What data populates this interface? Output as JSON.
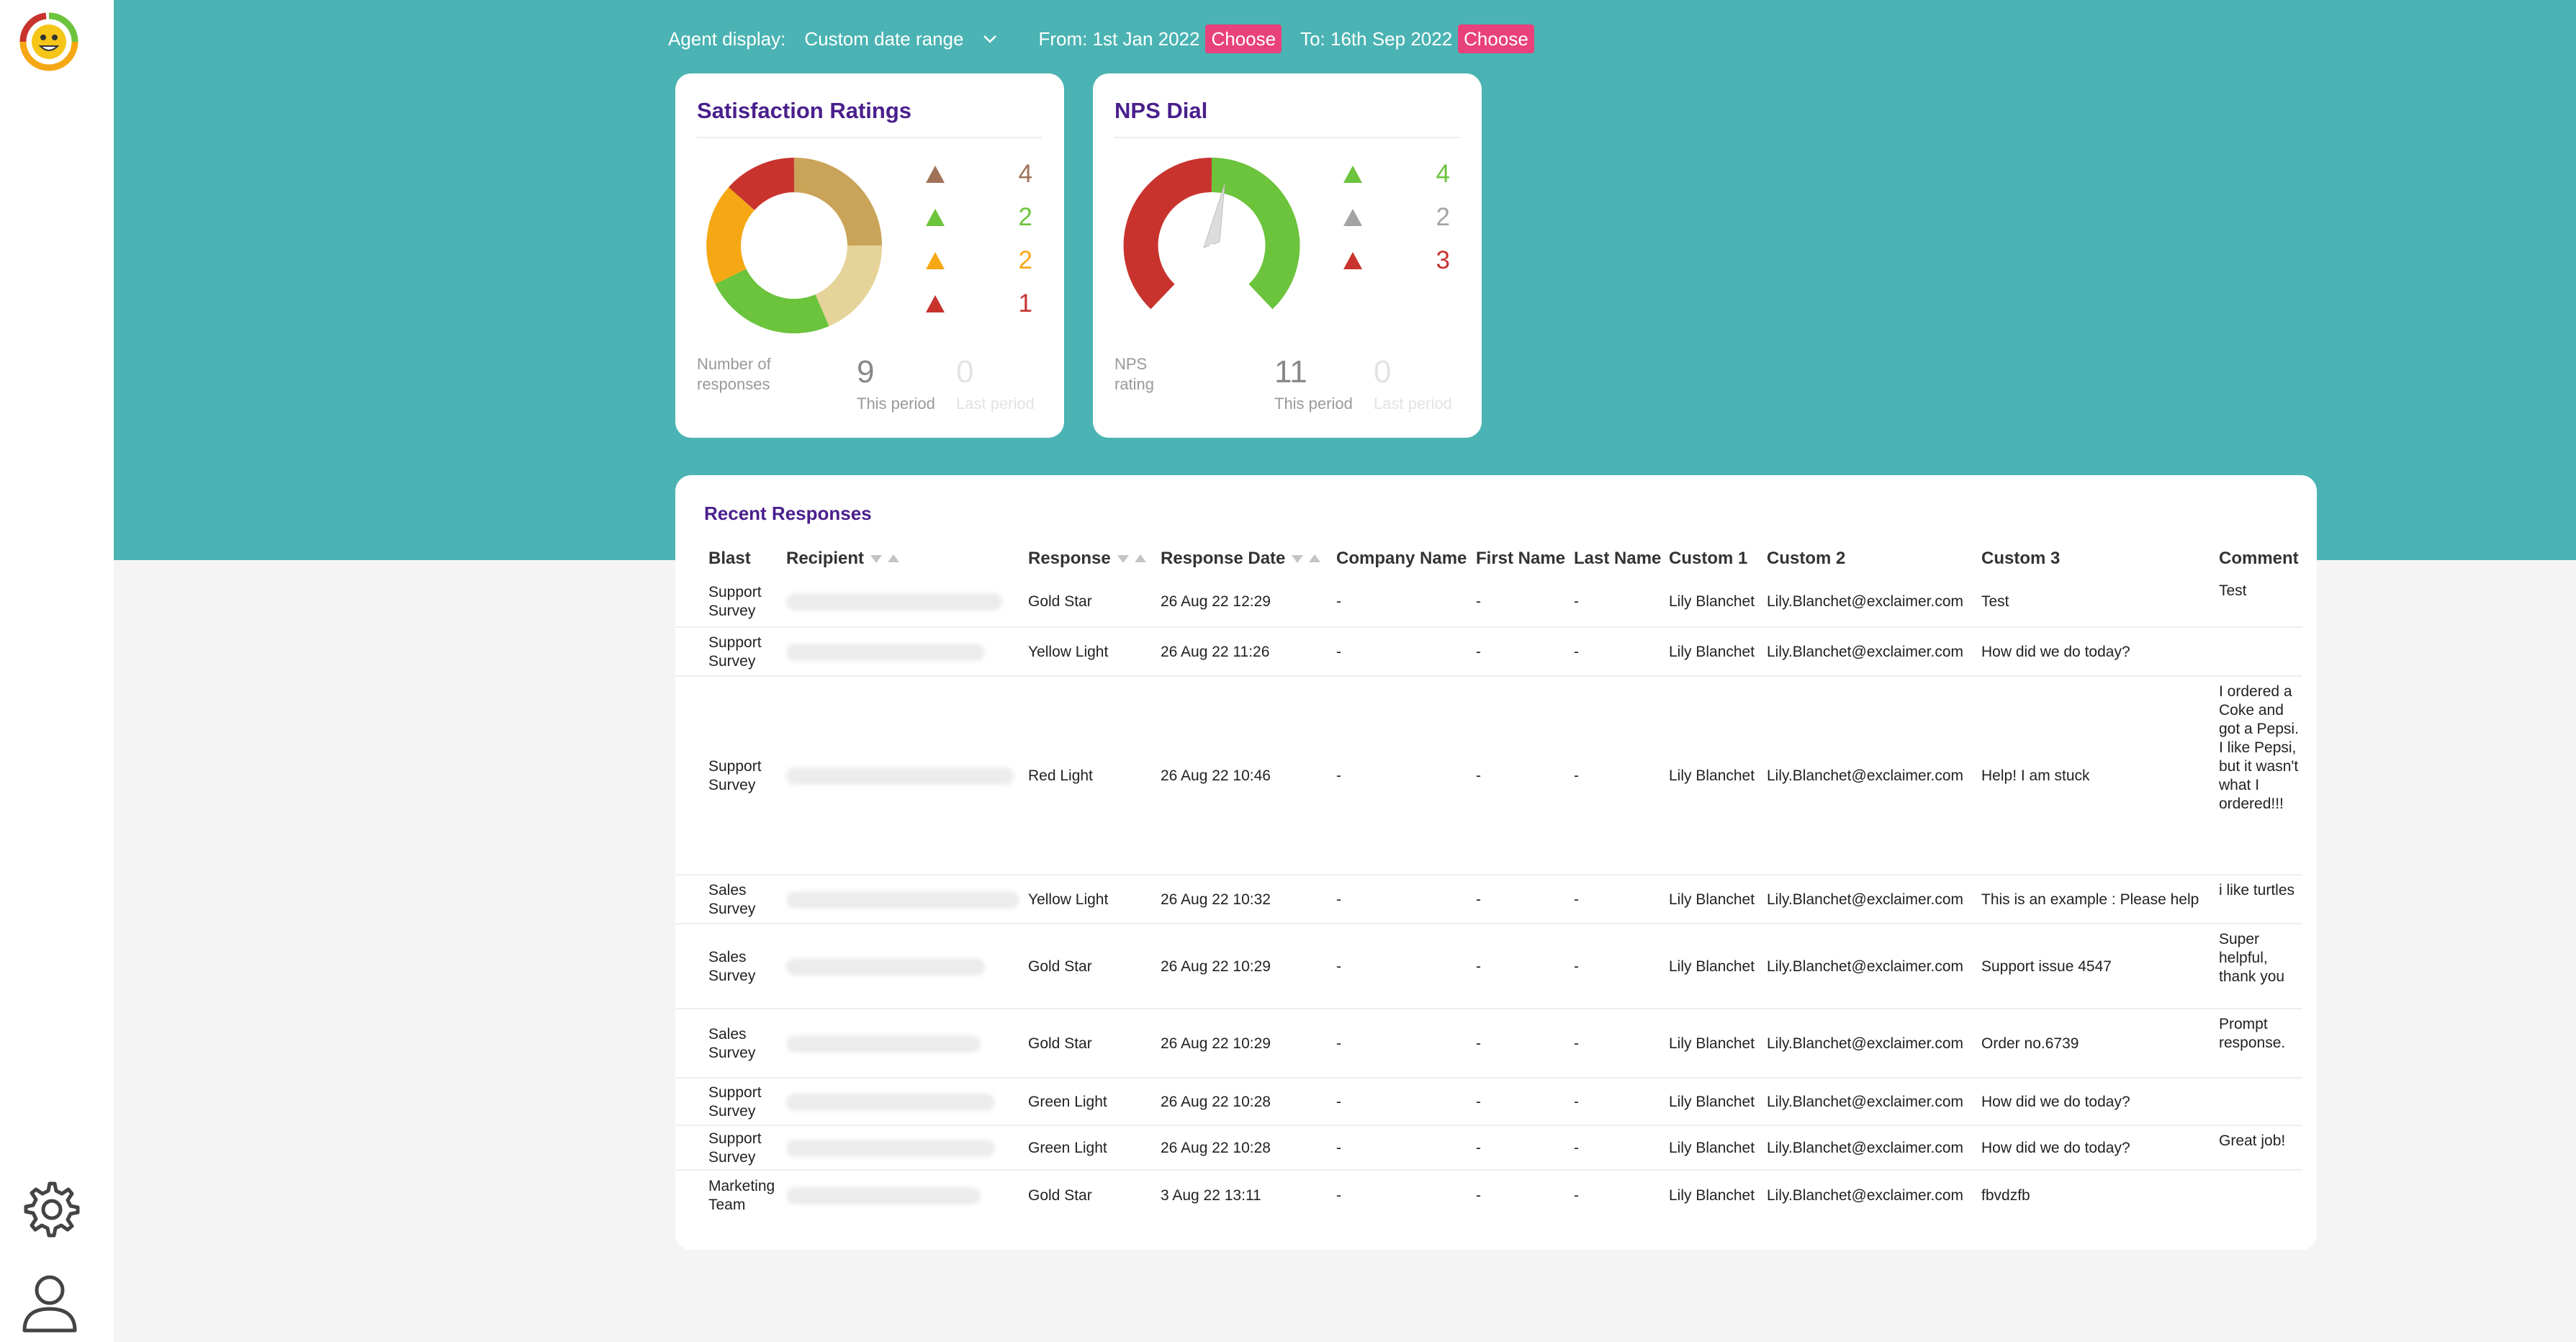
{
  "controls": {
    "agent_display_label": "Agent display:",
    "agent_display_value": "Custom date range",
    "from_label": "From: 1st Jan 2022",
    "to_label": "To: 16th Sep 2022",
    "choose_label": "Choose"
  },
  "satisfaction": {
    "title": "Satisfaction Ratings",
    "legend": [
      {
        "value": "4",
        "color": "#a0725a"
      },
      {
        "value": "2",
        "color": "#6cc33c"
      },
      {
        "value": "2",
        "color": "#f5a814"
      },
      {
        "value": "1",
        "color": "#c8332e"
      }
    ],
    "responses_label": "Number of responses",
    "this_period_value": "9",
    "this_period_label": "This period",
    "last_period_value": "0",
    "last_period_label": "Last period"
  },
  "nps": {
    "title": "NPS Dial",
    "legend": [
      {
        "value": "4",
        "color": "#6cc33c"
      },
      {
        "value": "2",
        "color": "#a3a3a3"
      },
      {
        "value": "3",
        "color": "#c8332e"
      }
    ],
    "rating_label": "NPS rating",
    "this_period_value": "11",
    "this_period_label": "This period",
    "last_period_value": "0",
    "last_period_label": "Last period"
  },
  "table": {
    "title": "Recent Responses",
    "headers": [
      "Blast",
      "Recipient",
      "Response",
      "Response Date",
      "Company Name",
      "First Name",
      "Last Name",
      "Custom 1",
      "Custom 2",
      "Custom 3",
      "Comment"
    ],
    "rows": [
      {
        "blast": "Support Survey",
        "response": "Gold Star",
        "date": "26 Aug 22 12:29",
        "company": "-",
        "first": "-",
        "last": "-",
        "custom1": "Lily Blanchet",
        "custom2": "Lily.Blanchet@exclaimer.com",
        "custom3": "Test",
        "comment": "Test"
      },
      {
        "blast": "Support Survey",
        "response": "Yellow Light",
        "date": "26 Aug 22 11:26",
        "company": "-",
        "first": "-",
        "last": "-",
        "custom1": "Lily Blanchet",
        "custom2": "Lily.Blanchet@exclaimer.com",
        "custom3": "How did we do today?",
        "comment": ""
      },
      {
        "blast": "Support Survey",
        "response": "Red Light",
        "date": "26 Aug 22 10:46",
        "company": "-",
        "first": "-",
        "last": "-",
        "custom1": "Lily Blanchet",
        "custom2": "Lily.Blanchet@exclaimer.com",
        "custom3": "Help! I am stuck",
        "comment": "I ordered a Coke and got a Pepsi. I like Pepsi, but it wasn't what I ordered!!!"
      },
      {
        "blast": "Sales Survey",
        "response": "Yellow Light",
        "date": "26 Aug 22 10:32",
        "company": "-",
        "first": "-",
        "last": "-",
        "custom1": "Lily Blanchet",
        "custom2": "Lily.Blanchet@exclaimer.com",
        "custom3": "This is an example : Please help",
        "comment": "i like turtles"
      },
      {
        "blast": "Sales Survey",
        "response": "Gold Star",
        "date": "26 Aug 22 10:29",
        "company": "-",
        "first": "-",
        "last": "-",
        "custom1": "Lily Blanchet",
        "custom2": "Lily.Blanchet@exclaimer.com",
        "custom3": "Support issue 4547",
        "comment": "Super helpful, thank you"
      },
      {
        "blast": "Sales Survey",
        "response": "Gold Star",
        "date": "26 Aug 22 10:29",
        "company": "-",
        "first": "-",
        "last": "-",
        "custom1": "Lily Blanchet",
        "custom2": "Lily.Blanchet@exclaimer.com",
        "custom3": "Order no.6739",
        "comment": "Prompt response."
      },
      {
        "blast": "Support Survey",
        "response": "Green Light",
        "date": "26 Aug 22 10:28",
        "company": "-",
        "first": "-",
        "last": "-",
        "custom1": "Lily Blanchet",
        "custom2": "Lily.Blanchet@exclaimer.com",
        "custom3": "How did we do today?",
        "comment": ""
      },
      {
        "blast": "Support Survey",
        "response": "Green Light",
        "date": "26 Aug 22 10:28",
        "company": "-",
        "first": "-",
        "last": "-",
        "custom1": "Lily Blanchet",
        "custom2": "Lily.Blanchet@exclaimer.com",
        "custom3": "How did we do today?",
        "comment": "Great job!"
      },
      {
        "blast": "Marketing Team",
        "response": "Gold Star",
        "date": "3 Aug 22 13:11",
        "company": "-",
        "first": "-",
        "last": "-",
        "custom1": "Lily Blanchet",
        "custom2": "Lily.Blanchet@exclaimer.com",
        "custom3": "fbvdzfb",
        "comment": ""
      }
    ]
  },
  "icons": {
    "logo": "smiley-logo-icon",
    "settings": "gear-icon",
    "profile": "user-icon"
  }
}
